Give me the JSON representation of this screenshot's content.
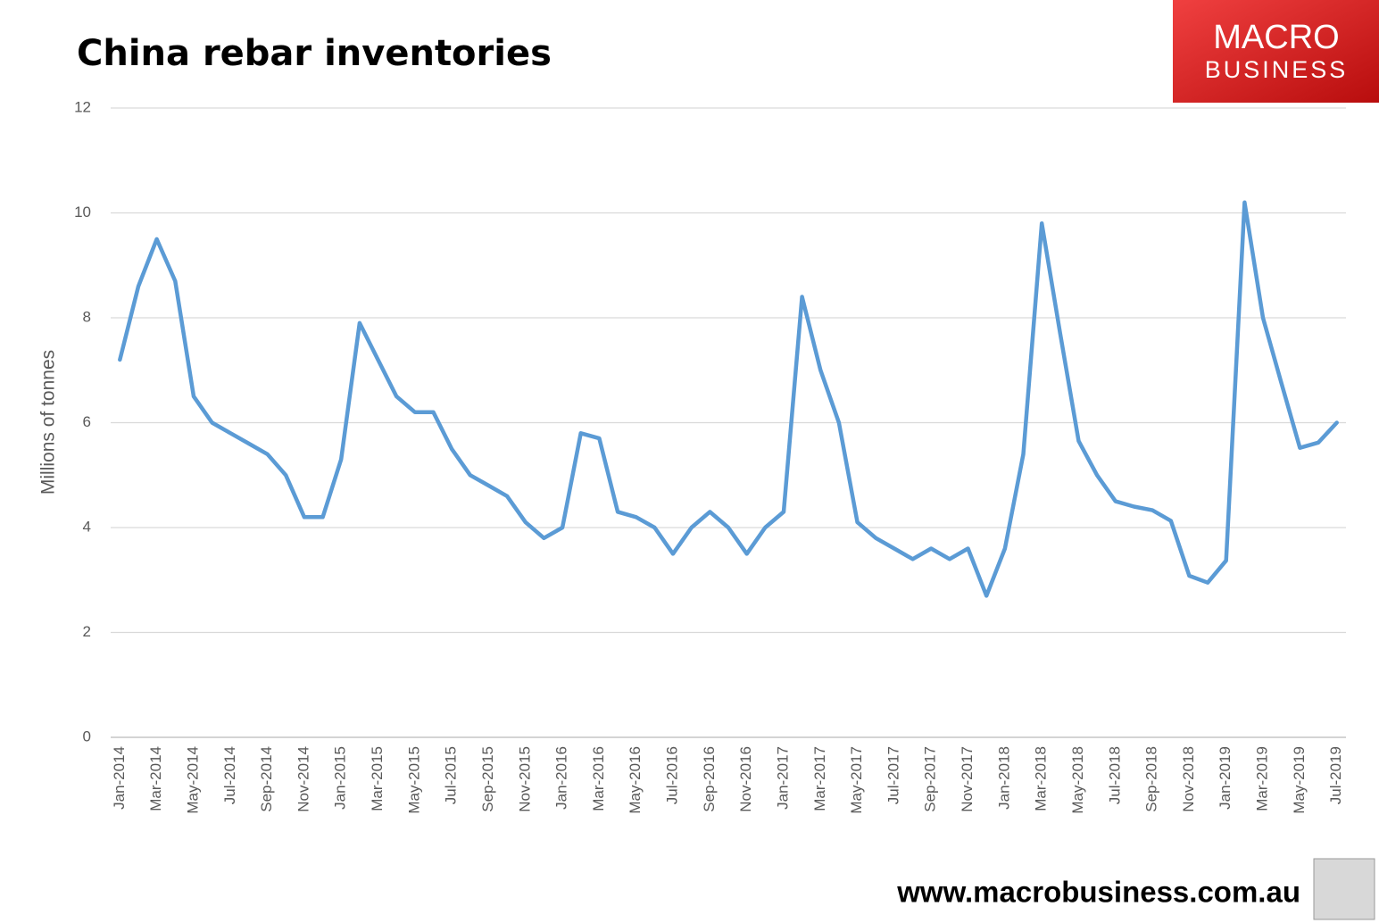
{
  "chart_data": {
    "type": "line",
    "title": "China rebar inventories",
    "y_label": "Millions of tonnes",
    "logo": {
      "line1": "MACRO",
      "line2": "BUSINESS"
    },
    "source": "www.macrobusiness.com.au",
    "categories": [
      "Jan-2014",
      null,
      "Mar-2014",
      null,
      "May-2014",
      null,
      "Jul-2014",
      null,
      "Sep-2014",
      null,
      "Nov-2014",
      null,
      "Jan-2015",
      null,
      "Mar-2015",
      null,
      "May-2015",
      null,
      "Jul-2015",
      null,
      "Sep-2015",
      null,
      "Nov-2015",
      null,
      "Jan-2016",
      null,
      "Mar-2016",
      null,
      "May-2016",
      null,
      "Jul-2016",
      null,
      "Sep-2016",
      null,
      "Nov-2016",
      null,
      "Jan-2017",
      null,
      "Mar-2017",
      null,
      "May-2017",
      null,
      "Jul-2017",
      null,
      "Sep-2017",
      null,
      "Nov-2017",
      null,
      "Jan-2018",
      null,
      "Mar-2018",
      null,
      "May-2018",
      null,
      "Jul-2018",
      null,
      "Sep-2018",
      null,
      "Nov-2018",
      null,
      "Jan-2019",
      null,
      "Mar-2019",
      null,
      "May-2019",
      null,
      "Jul-2019"
    ],
    "values": [
      7.2,
      8.6,
      9.5,
      8.7,
      6.5,
      6.0,
      5.8,
      5.6,
      5.4,
      5.0,
      4.2,
      4.2,
      5.3,
      7.9,
      7.2,
      6.5,
      6.2,
      6.2,
      5.5,
      5.0,
      4.8,
      4.6,
      4.1,
      3.8,
      4.0,
      5.8,
      5.7,
      4.3,
      4.2,
      4.0,
      3.5,
      4.0,
      4.3,
      4.0,
      3.5,
      4.0,
      4.3,
      8.4,
      7.0,
      6.0,
      4.1,
      3.8,
      3.6,
      3.4,
      3.6,
      3.4,
      3.6,
      2.7,
      3.6,
      5.4,
      9.8,
      7.7,
      5.65,
      5.0,
      4.5,
      4.4,
      4.33,
      4.13,
      3.08,
      2.95,
      3.37,
      10.2,
      8.0,
      6.75,
      5.52,
      5.62,
      6.0
    ],
    "color": "#5b9bd5",
    "ylim": [
      0,
      12
    ],
    "yticks": [
      0,
      2,
      4,
      6,
      8,
      10,
      12
    ],
    "grid": true
  }
}
